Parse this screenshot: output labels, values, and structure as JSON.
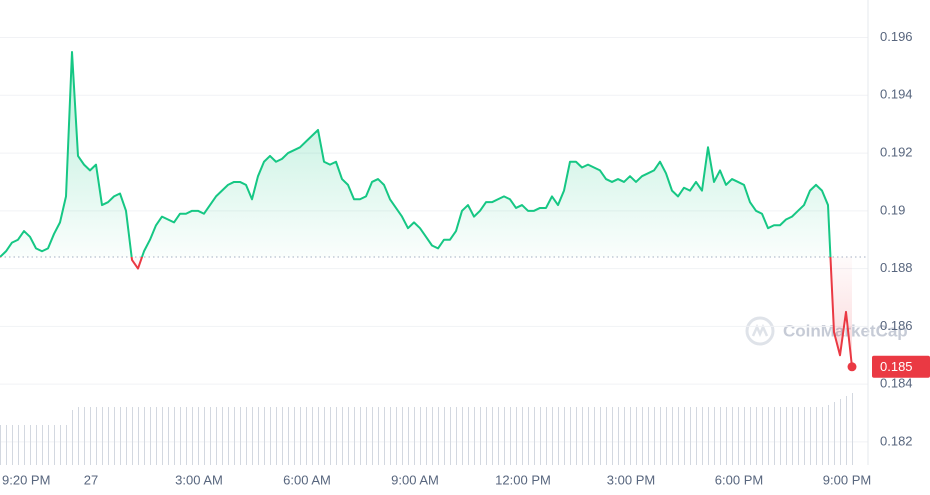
{
  "chart_data": {
    "type": "line",
    "values": [
      0.1884,
      0.1886,
      0.1889,
      0.189,
      0.1893,
      0.1891,
      0.1887,
      0.1886,
      0.1887,
      0.1892,
      0.1896,
      0.1905,
      0.1955,
      0.1919,
      0.1916,
      0.1914,
      0.1916,
      0.1902,
      0.1903,
      0.1905,
      0.1906,
      0.19,
      0.1883,
      0.188,
      0.1886,
      0.189,
      0.1895,
      0.1898,
      0.1897,
      0.1896,
      0.1899,
      0.1899,
      0.19,
      0.19,
      0.1899,
      0.1902,
      0.1905,
      0.1907,
      0.1909,
      0.191,
      0.191,
      0.1909,
      0.1904,
      0.1912,
      0.1917,
      0.1919,
      0.1917,
      0.1918,
      0.192,
      0.1921,
      0.1922,
      0.1924,
      0.1926,
      0.1928,
      0.1917,
      0.1916,
      0.1917,
      0.1911,
      0.1909,
      0.1904,
      0.1904,
      0.1905,
      0.191,
      0.1911,
      0.1909,
      0.1904,
      0.1901,
      0.1898,
      0.1894,
      0.1896,
      0.1894,
      0.1891,
      0.1888,
      0.1887,
      0.189,
      0.189,
      0.1893,
      0.19,
      0.1902,
      0.1898,
      0.19,
      0.1903,
      0.1903,
      0.1904,
      0.1905,
      0.1904,
      0.1901,
      0.1902,
      0.19,
      0.19,
      0.1901,
      0.1901,
      0.1905,
      0.1902,
      0.1907,
      0.1917,
      0.1917,
      0.1915,
      0.1916,
      0.1915,
      0.1914,
      0.1911,
      0.191,
      0.1911,
      0.191,
      0.1912,
      0.191,
      0.1912,
      0.1913,
      0.1914,
      0.1917,
      0.1913,
      0.1907,
      0.1905,
      0.1908,
      0.1907,
      0.191,
      0.1907,
      0.1922,
      0.191,
      0.1914,
      0.1909,
      0.1911,
      0.191,
      0.1909,
      0.1903,
      0.19,
      0.1899,
      0.1894,
      0.1895,
      0.1895,
      0.1897,
      0.1898,
      0.19,
      0.1902,
      0.1907,
      0.1909,
      0.1907,
      0.1902,
      0.1858,
      0.185,
      0.1865,
      0.1846
    ],
    "volume": [
      40,
      40,
      40,
      40,
      40,
      40,
      40,
      40,
      40,
      40,
      40,
      40,
      55,
      58,
      58,
      58,
      58,
      58,
      58,
      58,
      58,
      58,
      58,
      58,
      58,
      58,
      58,
      58,
      58,
      58,
      58,
      58,
      58,
      58,
      58,
      58,
      58,
      58,
      58,
      58,
      58,
      58,
      58,
      58,
      58,
      58,
      58,
      58,
      58,
      58,
      58,
      58,
      58,
      58,
      58,
      58,
      58,
      58,
      58,
      58,
      58,
      58,
      58,
      58,
      58,
      58,
      58,
      58,
      58,
      58,
      58,
      58,
      58,
      58,
      58,
      58,
      58,
      58,
      58,
      58,
      58,
      58,
      58,
      58,
      58,
      58,
      58,
      58,
      58,
      58,
      58,
      58,
      58,
      58,
      58,
      58,
      58,
      58,
      58,
      58,
      58,
      58,
      58,
      58,
      58,
      58,
      58,
      58,
      58,
      58,
      58,
      58,
      58,
      58,
      58,
      58,
      58,
      58,
      58,
      58,
      58,
      58,
      58,
      58,
      58,
      58,
      58,
      58,
      58,
      58,
      58,
      58,
      58,
      58,
      58,
      58,
      58,
      58,
      60,
      63,
      66,
      69,
      72
    ],
    "baseline": 0.1884,
    "last_price_label": "0.185",
    "watermark": "CoinMarketCap",
    "xlim": [
      0,
      145
    ],
    "xticks": [
      {
        "value": 0,
        "label": "9:20 PM"
      },
      {
        "value": 16,
        "label": "27"
      },
      {
        "value": 34,
        "label": "3:00 AM"
      },
      {
        "value": 52,
        "label": "6:00 AM"
      },
      {
        "value": 70,
        "label": "9:00 AM"
      },
      {
        "value": 88,
        "label": "12:00 PM"
      },
      {
        "value": 106,
        "label": "3:00 PM"
      },
      {
        "value": 124,
        "label": "6:00 PM"
      },
      {
        "value": 142,
        "label": "9:00 PM"
      }
    ],
    "ylim": [
      0.1812,
      0.1973
    ],
    "yticks": [
      0.182,
      0.184,
      0.186,
      0.188,
      0.19,
      0.192,
      0.194,
      0.196
    ],
    "up_color": "#16c784",
    "down_color": "#ea3943",
    "grid": true
  }
}
